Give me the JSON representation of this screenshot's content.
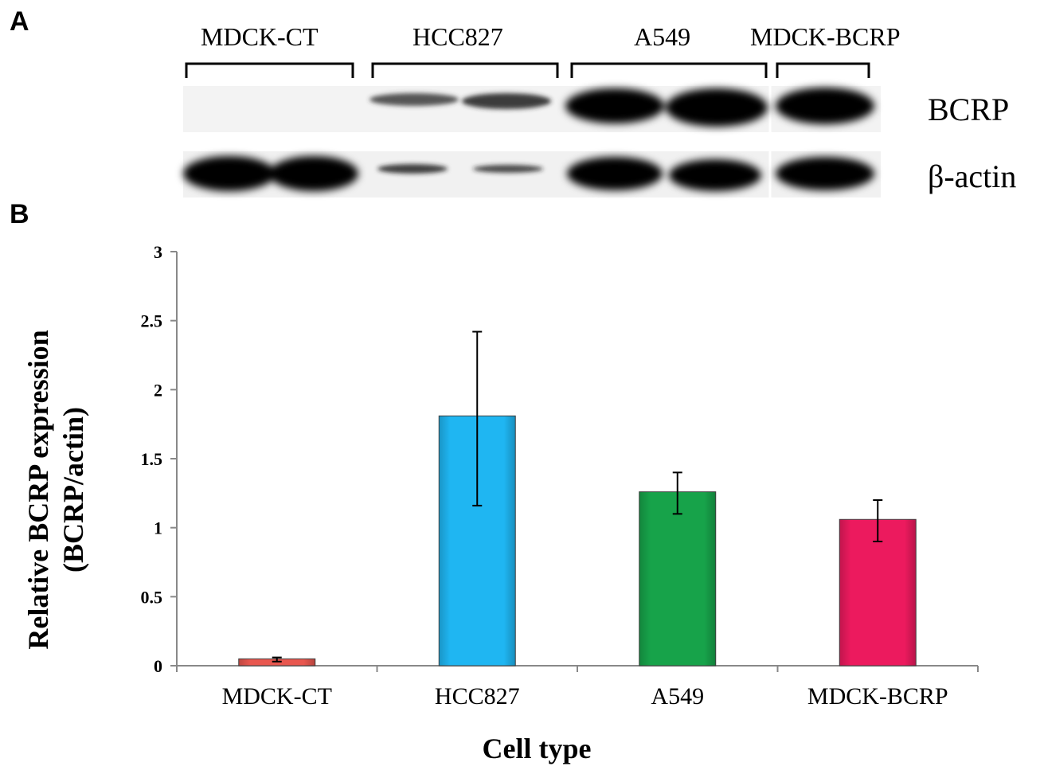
{
  "panel_a": {
    "letter": "A",
    "lane_groups": [
      "MDCK-CT",
      "HCC827",
      "A549",
      "MDCK-BCRP"
    ],
    "band_labels": [
      "BCRP",
      "β-actin"
    ]
  },
  "panel_b": {
    "letter": "B"
  },
  "chart_data": {
    "type": "bar",
    "categories": [
      "MDCK-CT",
      "HCC827",
      "A549",
      "MDCK-BCRP"
    ],
    "values": [
      0.05,
      1.81,
      1.26,
      1.06
    ],
    "error_low": [
      0.03,
      1.16,
      1.1,
      0.9
    ],
    "error_high": [
      0.06,
      2.42,
      1.4,
      1.2
    ],
    "colors": [
      "#e8574f",
      "#1fb6f2",
      "#17a34a",
      "#ec1a5e"
    ],
    "ylabel_line1": "Relative BCRP expression",
    "ylabel_line2": "(BCRP/actin)",
    "xlabel": "Cell type",
    "ylim": [
      0,
      3
    ],
    "yticks": [
      "0",
      "0.5",
      "1",
      "1.5",
      "2",
      "2.5",
      "3"
    ],
    "grid": false,
    "legend": "none"
  }
}
